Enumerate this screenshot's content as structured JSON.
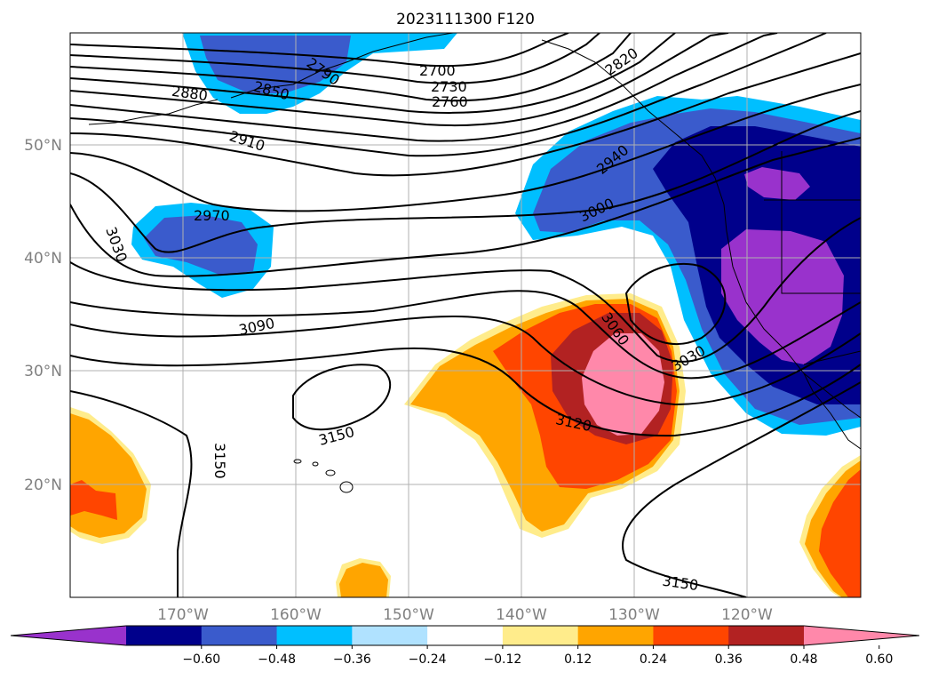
{
  "title": "2023111300 F120",
  "map": {
    "lat_labels": [
      "50°N",
      "40°N",
      "30°N",
      "20°N"
    ],
    "lon_labels": [
      "170°W",
      "160°W",
      "150°W",
      "140°W",
      "130°W",
      "120°W"
    ],
    "contour_labels": [
      "2700",
      "2730",
      "2760",
      "2790",
      "2820",
      "2850",
      "2880",
      "2910",
      "2940",
      "2970",
      "3000",
      "3030",
      "3030",
      "3060",
      "3090",
      "3120",
      "3150",
      "3150",
      "3150"
    ],
    "colorbar": {
      "tick_labels": [
        "−0.60",
        "−0.48",
        "−0.36",
        "−0.24",
        "−0.12",
        "0.12",
        "0.24",
        "0.36",
        "0.48",
        "0.60"
      ],
      "colors": [
        "#9932cc",
        "#00008b",
        "#3a5bcc",
        "#00bfff",
        "#b0e2ff",
        "#ffffff",
        "#ffec8b",
        "#ffa500",
        "#ff4500",
        "#b22222",
        "#ff88aa"
      ]
    },
    "grid_color": "#b0b0b0",
    "tick_label_color": "#808080"
  }
}
